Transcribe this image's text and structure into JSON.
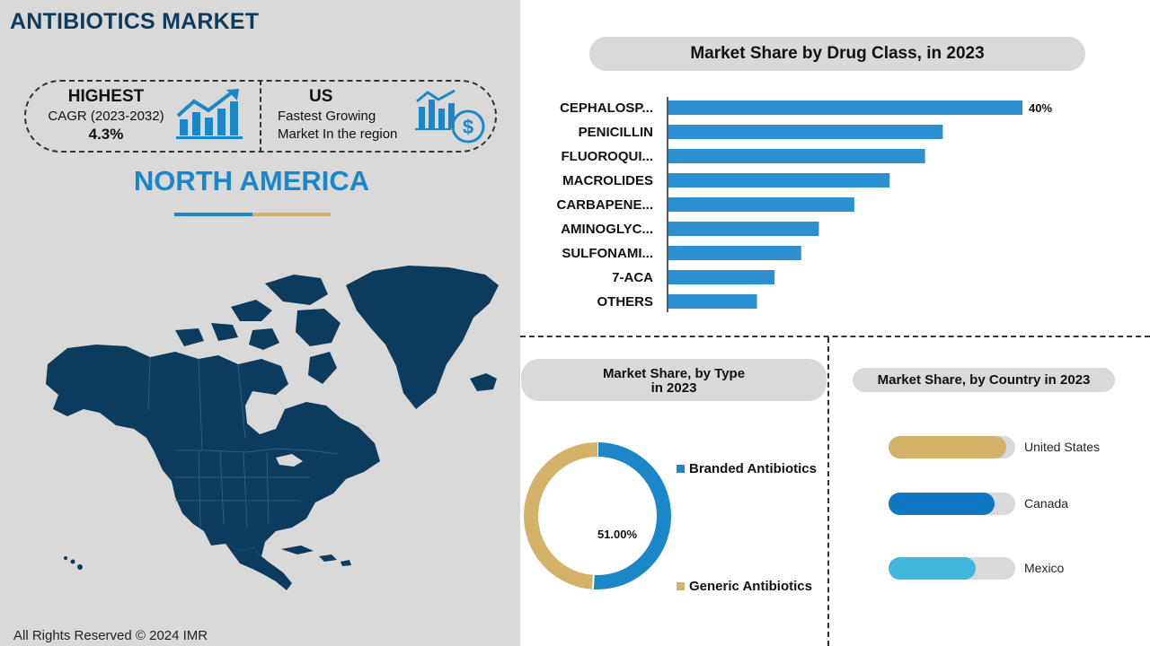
{
  "title": "ANTIBIOTICS MARKET",
  "stats": {
    "highest_label": "HIGHEST",
    "cagr_period": "CAGR (2023-2032)",
    "cagr_value": "4.3%",
    "us_label": "US",
    "us_line1": "Fastest Growing",
    "us_line2": "Market In the region"
  },
  "region": "NORTH AMERICA",
  "footer": "All Rights Reserved © 2024 IMR",
  "icons": {
    "growth": "growth-chart-icon",
    "money": "money-chart-icon",
    "map": "north-america-map"
  },
  "colors": {
    "navy": "#0d3b5e",
    "blue": "#1b87c9",
    "bar": "#2b8fd0",
    "gold": "#d4b26a",
    "gray": "#d9d9d9"
  },
  "chart_data": [
    {
      "type": "bar",
      "orientation": "horizontal",
      "title": "Market Share by Drug Class, in 2023",
      "categories": [
        "CEPHALOSP...",
        "PENICILLIN",
        "FLUOROQUI...",
        "MACROLIDES",
        "CARBAPENE...",
        "AMINOGLYC...",
        "SULFONAMI...",
        "7-ACA",
        "OTHERS"
      ],
      "values": [
        40,
        31,
        29,
        25,
        21,
        17,
        15,
        12,
        10
      ],
      "data_labels": [
        "40%",
        "",
        "",
        "",
        "",
        "",
        "",
        "",
        ""
      ],
      "xlim": [
        0,
        40
      ],
      "grid": false,
      "legend": "none"
    },
    {
      "type": "pie",
      "donut": true,
      "title": "Market Share, by  Type in 2023",
      "title_line1": "Market Share, by  Type",
      "title_line2": "in 2023",
      "categories": [
        "Branded Antibiotics",
        "Generic Antibiotics"
      ],
      "values": [
        51,
        49
      ],
      "center_label": "51.00%",
      "colors": [
        "#1b87c9",
        "#d4b26a"
      ],
      "legend": "right"
    },
    {
      "type": "bar",
      "orientation": "horizontal",
      "title": "Market Share, by Country in 2023",
      "categories": [
        "United States",
        "Canada",
        "Mexico"
      ],
      "values": [
        93,
        84,
        69
      ],
      "xlim": [
        0,
        100
      ],
      "colors": [
        "#d4b26a",
        "#0e78c2",
        "#3fb8dc"
      ],
      "legend": "none"
    }
  ]
}
